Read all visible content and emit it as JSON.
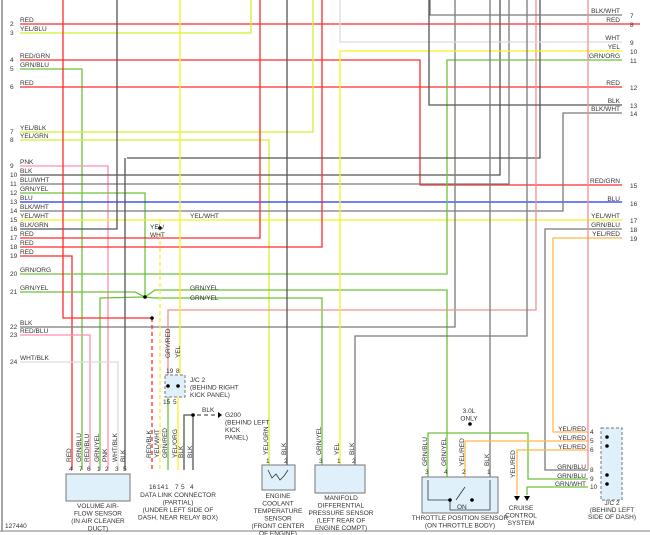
{
  "figure_number": "127440",
  "colors": {
    "red": "#ff2a2a",
    "yellow": "#f7f020",
    "green": "#6cc23a",
    "gray": "#7a7a7a",
    "dark_gray": "#555555",
    "pink": "#ff8fb0",
    "blue": "#2233ee",
    "light_gray": "#dcdcdc",
    "yel_red": "#ffbb44",
    "yel_grn": "#d4ee30",
    "salmon": "#f09090",
    "box_fill": "#dff0fa"
  },
  "left_connector": [
    {
      "pin": "2",
      "wire": "RED"
    },
    {
      "pin": "3",
      "wire": "YEL/BLU"
    },
    {
      "pin": "4",
      "wire": "RED/GRN"
    },
    {
      "pin": "5",
      "wire": "GRN/BLU"
    },
    {
      "pin": "6",
      "wire": "RED"
    },
    {
      "pin": "7",
      "wire": "YEL/BLK"
    },
    {
      "pin": "8",
      "wire": "YEL/GRN"
    },
    {
      "pin": "9",
      "wire": "PNK"
    },
    {
      "pin": "10",
      "wire": "BLK"
    },
    {
      "pin": "11",
      "wire": "BLU/WHT"
    },
    {
      "pin": "12",
      "wire": "GRN/YEL"
    },
    {
      "pin": "13",
      "wire": "BLU"
    },
    {
      "pin": "14",
      "wire": "BLK/WHT"
    },
    {
      "pin": "15",
      "wire": "YEL/WHT"
    },
    {
      "pin": "16",
      "wire": "BLK/GRN"
    },
    {
      "pin": "17",
      "wire": "RED"
    },
    {
      "pin": "18",
      "wire": "RED"
    },
    {
      "pin": "19",
      "wire": "RED"
    },
    {
      "pin": "20",
      "wire": "GRN/ORG"
    },
    {
      "pin": "21",
      "wire": "GRN/YEL"
    },
    {
      "pin": "22",
      "wire": "BLK"
    },
    {
      "pin": "23",
      "wire": "RED/BLU"
    },
    {
      "pin": "24",
      "wire": "WHT/BLK"
    }
  ],
  "right_connector": [
    {
      "pin": "7",
      "wire": "BLK/WHT"
    },
    {
      "pin": "8",
      "wire": "RED"
    },
    {
      "pin": "9",
      "wire": "WHT"
    },
    {
      "pin": "10",
      "wire": "YEL"
    },
    {
      "pin": "11",
      "wire": "GRN/ORG"
    },
    {
      "pin": "12",
      "wire": "RED"
    },
    {
      "pin": "13",
      "wire": "BLK"
    },
    {
      "pin": "14",
      "wire": "BLK/WHT"
    },
    {
      "pin": "15",
      "wire": "RED/GRN"
    },
    {
      "pin": "16",
      "wire": "BLU"
    },
    {
      "pin": "17",
      "wire": "YEL/WHT"
    },
    {
      "pin": "18",
      "wire": "GRN/BLU"
    },
    {
      "pin": "19",
      "wire": "YEL/RED"
    }
  ],
  "mid_labels": [
    "YEL/WHT",
    "YEL/",
    "WHT",
    "GRN/YEL",
    "GRN/YEL"
  ],
  "components": {
    "vaf": {
      "pins": [
        {
          "pin": "4",
          "wire": "RED"
        },
        {
          "pin": "7",
          "wire": "GRN/BLU"
        },
        {
          "pin": "6",
          "wire": "RED/BLU"
        },
        {
          "pin": "1",
          "wire": "GRN/YEL"
        },
        {
          "pin": "2",
          "wire": "PNK"
        },
        {
          "pin": "3",
          "wire": "WHT/BLK"
        },
        {
          "pin": "5",
          "wire": "BLK"
        }
      ],
      "caption": [
        "VOLUME AIR-",
        "FLOW SENSOR",
        "(IN AIR CLEANER",
        "DUCT)"
      ]
    },
    "dlc": {
      "pins": [
        {
          "pin": "16",
          "wire": "RED/BLK"
        },
        {
          "pin": "14",
          "wire": "YEL/WHT"
        },
        {
          "pin": "1",
          "wire": "GRN/RED"
        },
        {
          "pin": "7",
          "wire": "YEL/ORG"
        },
        {
          "pin": "5",
          "wire": "BLK"
        },
        {
          "pin": "4",
          "wire": "BLK"
        }
      ],
      "caption": [
        "DATA LINK CONNECTOR",
        "(PARTIAL)",
        "(UNDER LEFT SIDE OF",
        "DASH, NEAR RELAY BOX)"
      ]
    },
    "jc2_right_kick": {
      "top_pins": [
        {
          "pin": "19",
          "wire": "GRY/RED"
        },
        {
          "pin": "8",
          "wire": "YEL"
        }
      ],
      "bottom_pins": [
        "15",
        "5"
      ],
      "caption": [
        "J/C 2",
        "(BEHIND RIGHT",
        "KICK PANEL)"
      ]
    },
    "g200": {
      "wire": "BLK",
      "caption": [
        "G200",
        "(BEHIND LEFT",
        "KICK",
        "PANEL)"
      ]
    },
    "ect": {
      "pins": [
        {
          "pin": "1",
          "wire": "YEL/GRN"
        },
        {
          "pin": "2",
          "wire": "BLK"
        }
      ],
      "caption": [
        "ENGINE",
        "COOLANT",
        "TEMPERATURE",
        "SENSOR",
        "(FRONT CENTER",
        "OF ENGINE)"
      ]
    },
    "mdp": {
      "pins": [
        {
          "pin": "3",
          "wire": "GRN/YEL"
        },
        {
          "pin": "1",
          "wire": "YEL"
        },
        {
          "pin": "2",
          "wire": "BLK"
        }
      ],
      "caption": [
        "MANIFOLD",
        "DIFFERENTIAL",
        "PRESSURE SENSOR",
        "(LEFT REAR OF",
        "ENGINE COMPT)"
      ]
    },
    "tps": {
      "pins": [
        {
          "pin": "3",
          "wire": "GRN/BLU"
        },
        {
          "pin": "4",
          "wire": "GRN/YEL"
        },
        {
          "pin": "2",
          "wire": "YEL/RED"
        },
        {
          "pin": "1",
          "wire": "BLK"
        }
      ],
      "switch_label": "ON",
      "note": [
        "3.0L",
        "ONLY"
      ],
      "caption": [
        "THROTTLE POSITION SENSOR",
        "(ON THROTTLE BODY)"
      ]
    },
    "cruise": {
      "wire": "YEL/RED",
      "caption": [
        "CRUISE",
        "CONTROL",
        "SYSTEM"
      ]
    },
    "jc2_left_dash": {
      "pins": [
        {
          "pin": "4",
          "wire": "YEL/RED"
        },
        {
          "pin": "5",
          "wire": "YEL/RED"
        },
        {
          "pin": "6",
          "wire": "YEL/RED"
        },
        {
          "pin": "8",
          "wire": "GRN/BLU"
        },
        {
          "pin": "9",
          "wire": "GRN/BLU"
        },
        {
          "pin": "10",
          "wire": "GRN/WHT"
        }
      ],
      "caption": [
        "J/C 2",
        "(BEHIND LEFT",
        "SIDE OF DASH)"
      ]
    }
  }
}
